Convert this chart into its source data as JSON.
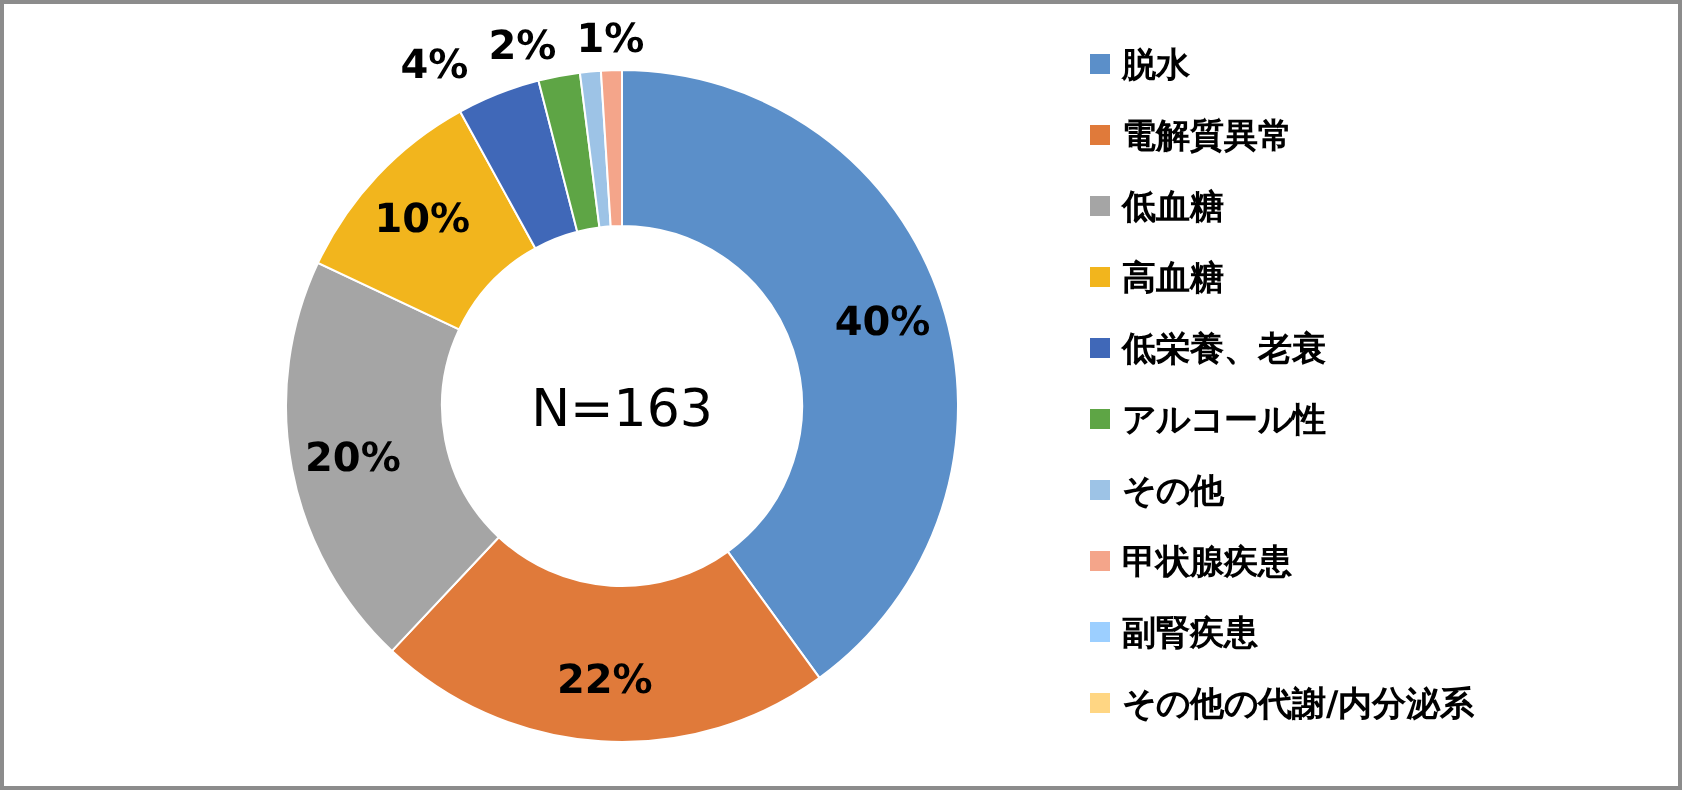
{
  "chart_data": {
    "type": "donut",
    "categories": [
      "脱水",
      "電解質異常",
      "低血糖",
      "高血糖",
      "低栄養、老衰",
      "アルコール性",
      "その他",
      "甲状腺疾患",
      "副腎疾患",
      "その他の代謝/内分泌系"
    ],
    "values": [
      40,
      22,
      20,
      10,
      4,
      2,
      1,
      1,
      0,
      0
    ],
    "colors": [
      "#5b8fc9",
      "#e07a3a",
      "#a5a5a5",
      "#f2b51d",
      "#4068b8",
      "#5ea545",
      "#9dc3e6",
      "#f4a58a",
      "#9ccfff",
      "#ffd683"
    ],
    "value_labels": [
      "40%",
      "22%",
      "20%",
      "10%",
      "4%",
      "2%",
      null,
      "1%",
      null,
      null
    ],
    "annotations": [
      "N=163"
    ],
    "legend": "right"
  }
}
